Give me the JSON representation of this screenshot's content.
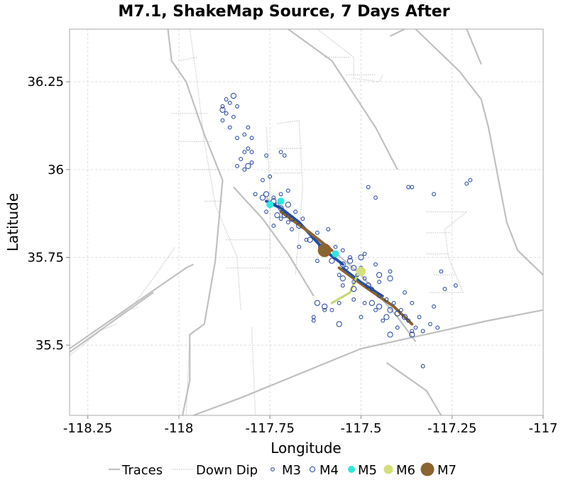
{
  "chart_data": {
    "type": "scatter",
    "title": "M7.1, ShakeMap Source, 7 Days After",
    "xlabel": "Longitude",
    "ylabel": "Latitude",
    "xlim": [
      -118.3,
      -117.0
    ],
    "ylim": [
      35.3,
      36.4
    ],
    "xticks": [
      {
        "value": -118.25,
        "label": "-118.25"
      },
      {
        "value": -118.0,
        "label": "-118"
      },
      {
        "value": -117.75,
        "label": "-117.75"
      },
      {
        "value": -117.5,
        "label": "-117.5"
      },
      {
        "value": -117.25,
        "label": "-117.25"
      },
      {
        "value": -117.0,
        "label": "-117"
      }
    ],
    "yticks": [
      {
        "value": 35.5,
        "label": "35.5"
      },
      {
        "value": 35.75,
        "label": "35.75"
      },
      {
        "value": 36.0,
        "label": "36"
      },
      {
        "value": 36.25,
        "label": "36.25"
      }
    ],
    "grid": true,
    "legend_position": "bottom",
    "legend": [
      {
        "key": "traces",
        "label": "Traces",
        "color": "#c0c0c0",
        "marker": "line"
      },
      {
        "key": "downdip",
        "label": "Down Dip",
        "color": "#c8c8c8",
        "marker": "dotted-line"
      },
      {
        "key": "m3",
        "label": "M3",
        "color": "#1f3f9a",
        "marker": "open-circle-small"
      },
      {
        "key": "m4",
        "label": "M4",
        "color": "#1f3f9a",
        "marker": "open-circle"
      },
      {
        "key": "m5",
        "label": "M5",
        "color": "#2ee8e0",
        "marker": "filled-circle"
      },
      {
        "key": "m6",
        "label": "M6",
        "color": "#d4de7a",
        "marker": "filled-circle"
      },
      {
        "key": "m7",
        "label": "M7",
        "color": "#8b6430",
        "marker": "filled-circle"
      }
    ],
    "colors": {
      "trace": "#c0c0c0",
      "downdip": "#c8c8c8",
      "m3m4": "#1f3f9a",
      "rupture_blue": "#1f4fa8",
      "rupture_brown": "#8b6430",
      "rupture_green": "#c6d86a",
      "grid": "#dddddd"
    },
    "traces": [
      [
        [
          -118.3,
          35.49
        ],
        [
          -118.05,
          35.67
        ],
        [
          -117.98,
          35.72
        ],
        [
          -117.96,
          35.73
        ]
      ],
      [
        [
          -118.3,
          35.48
        ],
        [
          -118.07,
          35.65
        ]
      ],
      [
        [
          -117.99,
          35.3
        ],
        [
          -117.97,
          35.4
        ],
        [
          -117.97,
          35.53
        ],
        [
          -117.93,
          35.56
        ],
        [
          -117.9,
          35.74
        ],
        [
          -117.88,
          35.97
        ],
        [
          -117.93,
          36.1
        ],
        [
          -117.98,
          36.25
        ],
        [
          -118.02,
          36.31
        ],
        [
          -118.03,
          36.4
        ]
      ],
      [
        [
          -117.96,
          35.3
        ],
        [
          -117.83,
          35.35
        ],
        [
          -117.5,
          35.49
        ],
        [
          -117.15,
          35.57
        ],
        [
          -117.0,
          35.6
        ]
      ],
      [
        [
          -117.85,
          35.95
        ],
        [
          -117.77,
          35.86
        ],
        [
          -117.7,
          35.76
        ],
        [
          -117.63,
          35.64
        ]
      ],
      [
        [
          -117.43,
          35.45
        ],
        [
          -117.32,
          35.37
        ],
        [
          -117.28,
          35.3
        ]
      ],
      [
        [
          -117.76,
          35.92
        ],
        [
          -117.6,
          35.79
        ],
        [
          -117.5,
          35.7
        ],
        [
          -117.4,
          35.58
        ],
        [
          -117.35,
          35.51
        ]
      ],
      [
        [
          -117.7,
          36.4
        ],
        [
          -117.58,
          36.31
        ],
        [
          -117.46,
          36.12
        ],
        [
          -117.4,
          36.0
        ]
      ],
      [
        [
          -117.35,
          36.4
        ],
        [
          -117.23,
          36.28
        ],
        [
          -117.17,
          36.2
        ],
        [
          -117.15,
          36.12
        ],
        [
          -117.1,
          35.85
        ],
        [
          -117.07,
          35.77
        ],
        [
          -117.0,
          35.7
        ]
      ],
      [
        [
          -117.21,
          36.4
        ],
        [
          -117.17,
          36.3
        ]
      ],
      [
        [
          -117.42,
          36.38
        ],
        [
          -117.38,
          36.4
        ]
      ]
    ],
    "downdip": [
      [
        [
          -117.73,
          36.13
        ],
        [
          -117.67,
          36.14
        ],
        [
          -117.66,
          35.95
        ],
        [
          -117.68,
          35.7
        ]
      ],
      [
        [
          -117.76,
          36.12
        ],
        [
          -117.75,
          35.95
        ],
        [
          -117.75,
          35.75
        ]
      ],
      [
        [
          -117.97,
          36.4
        ],
        [
          -117.95,
          36.25
        ],
        [
          -117.93,
          36.08
        ],
        [
          -117.9,
          35.9
        ],
        [
          -117.84,
          35.75
        ],
        [
          -117.83,
          35.6
        ]
      ],
      [
        [
          -118.0,
          36.31
        ],
        [
          -117.95,
          36.32
        ]
      ],
      [
        [
          -118.02,
          36.16
        ],
        [
          -117.92,
          36.16
        ]
      ],
      [
        [
          -118.0,
          36.08
        ],
        [
          -117.91,
          36.08
        ]
      ],
      [
        [
          -117.96,
          36.0
        ],
        [
          -117.89,
          36.0
        ]
      ],
      [
        [
          -117.93,
          35.91
        ],
        [
          -117.88,
          35.91
        ]
      ],
      [
        [
          -117.73,
          36.06
        ],
        [
          -117.66,
          36.06
        ]
      ],
      [
        [
          -117.74,
          35.99
        ],
        [
          -117.66,
          35.99
        ]
      ],
      [
        [
          -117.87,
          35.8
        ],
        [
          -117.75,
          35.8
        ]
      ],
      [
        [
          -117.87,
          35.72
        ],
        [
          -117.75,
          35.72
        ]
      ],
      [
        [
          -117.32,
          35.88
        ],
        [
          -117.21,
          35.88
        ],
        [
          -117.27,
          35.83
        ],
        [
          -117.26,
          35.75
        ],
        [
          -117.22,
          35.65
        ],
        [
          -117.31,
          35.65
        ]
      ],
      [
        [
          -117.32,
          35.82
        ],
        [
          -117.25,
          35.82
        ]
      ],
      [
        [
          -117.32,
          35.76
        ],
        [
          -117.26,
          35.76
        ]
      ],
      [
        [
          -117.3,
          35.7
        ],
        [
          -117.24,
          35.7
        ]
      ],
      [
        [
          -118.3,
          35.47
        ],
        [
          -118.12,
          35.62
        ],
        [
          -118.05,
          35.72
        ],
        [
          -118.01,
          35.78
        ]
      ],
      [
        [
          -118.22,
          35.54
        ],
        [
          -118.17,
          35.56
        ]
      ],
      [
        [
          -118.16,
          35.59
        ],
        [
          -118.11,
          35.61
        ]
      ],
      [
        [
          -117.97,
          35.53
        ],
        [
          -117.98,
          35.3
        ]
      ],
      [
        [
          -117.8,
          35.55
        ],
        [
          -117.79,
          35.3
        ]
      ],
      [
        [
          -117.62,
          36.4
        ],
        [
          -117.52,
          36.32
        ],
        [
          -117.52,
          36.26
        ],
        [
          -117.45,
          36.25
        ],
        [
          -117.44,
          36.27
        ]
      ],
      [
        [
          -117.6,
          36.32
        ],
        [
          -117.53,
          36.32
        ]
      ],
      [
        [
          -117.54,
          36.27
        ],
        [
          -117.46,
          36.27
        ]
      ]
    ],
    "rupture_segments": [
      {
        "color": "#1f4fa8",
        "width": 4,
        "points": [
          [
            -117.76,
            35.91
          ],
          [
            -117.72,
            35.89
          ],
          [
            -117.67,
            35.85
          ],
          [
            -117.6,
            35.77
          ],
          [
            -117.55,
            35.73
          ]
        ]
      },
      {
        "color": "#8b6430",
        "width": 4,
        "points": [
          [
            -117.72,
            35.88
          ],
          [
            -117.64,
            35.82
          ],
          [
            -117.58,
            35.77
          ]
        ]
      },
      {
        "color": "#8b6430",
        "width": 4,
        "points": [
          [
            -117.56,
            35.72
          ],
          [
            -117.48,
            35.66
          ],
          [
            -117.41,
            35.61
          ],
          [
            -117.36,
            35.56
          ]
        ]
      },
      {
        "color": "#1f4fa8",
        "width": 3,
        "points": [
          [
            -117.55,
            35.72
          ],
          [
            -117.5,
            35.68
          ],
          [
            -117.44,
            35.64
          ]
        ]
      },
      {
        "color": "#c6d86a",
        "width": 3,
        "points": [
          [
            -117.51,
            35.7
          ],
          [
            -117.53,
            35.65
          ],
          [
            -117.58,
            35.62
          ]
        ]
      }
    ],
    "events_m3": [
      [
        -117.88,
        36.18
      ],
      [
        -117.86,
        36.19
      ],
      [
        -117.87,
        36.16
      ],
      [
        -117.88,
        36.14
      ],
      [
        -117.86,
        36.12
      ],
      [
        -117.84,
        36.18
      ],
      [
        -117.87,
        36.2
      ],
      [
        -117.85,
        36.15
      ],
      [
        -117.81,
        36.12
      ],
      [
        -117.82,
        36.1
      ],
      [
        -117.84,
        36.09
      ],
      [
        -117.8,
        36.09
      ],
      [
        -117.81,
        36.06
      ],
      [
        -117.82,
        36.05
      ],
      [
        -117.8,
        36.05
      ],
      [
        -117.83,
        36.03
      ],
      [
        -117.8,
        36.02
      ],
      [
        -117.82,
        36.0
      ],
      [
        -117.84,
        36.01
      ],
      [
        -117.76,
        36.04
      ],
      [
        -117.72,
        36.05
      ],
      [
        -117.71,
        36.04
      ],
      [
        -117.75,
        35.98
      ],
      [
        -117.77,
        35.97
      ],
      [
        -117.79,
        35.93
      ],
      [
        -117.7,
        35.94
      ],
      [
        -117.72,
        35.93
      ],
      [
        -117.74,
        35.92
      ],
      [
        -117.73,
        35.9
      ],
      [
        -117.76,
        35.88
      ],
      [
        -117.72,
        35.86
      ],
      [
        -117.68,
        35.88
      ],
      [
        -117.7,
        35.85
      ],
      [
        -117.74,
        35.84
      ],
      [
        -117.66,
        35.86
      ],
      [
        -117.69,
        35.83
      ],
      [
        -117.62,
        35.82
      ],
      [
        -117.6,
        35.78
      ],
      [
        -117.57,
        35.76
      ],
      [
        -117.62,
        35.74
      ],
      [
        -117.55,
        35.77
      ],
      [
        -117.53,
        35.75
      ],
      [
        -117.54,
        35.72
      ],
      [
        -117.51,
        35.7
      ],
      [
        -117.49,
        35.69
      ],
      [
        -117.52,
        35.68
      ],
      [
        -117.47,
        35.66
      ],
      [
        -117.45,
        35.64
      ],
      [
        -117.43,
        35.63
      ],
      [
        -117.41,
        35.62
      ],
      [
        -117.39,
        35.6
      ],
      [
        -117.37,
        35.57
      ],
      [
        -117.35,
        35.55
      ],
      [
        -117.36,
        35.54
      ],
      [
        -117.34,
        35.58
      ],
      [
        -117.33,
        35.54
      ],
      [
        -117.31,
        35.56
      ],
      [
        -117.4,
        35.55
      ],
      [
        -117.44,
        35.57
      ],
      [
        -117.46,
        35.6
      ],
      [
        -117.49,
        35.62
      ],
      [
        -117.52,
        35.63
      ],
      [
        -117.56,
        35.62
      ],
      [
        -117.58,
        35.6
      ],
      [
        -117.6,
        35.6
      ],
      [
        -117.63,
        35.58
      ],
      [
        -117.56,
        35.7
      ],
      [
        -117.5,
        35.72
      ],
      [
        -117.45,
        35.68
      ],
      [
        -117.38,
        35.65
      ],
      [
        -117.36,
        35.62
      ],
      [
        -117.3,
        35.61
      ],
      [
        -117.27,
        35.66
      ],
      [
        -117.24,
        35.67
      ],
      [
        -117.28,
        35.71
      ],
      [
        -117.42,
        35.71
      ],
      [
        -117.46,
        35.73
      ],
      [
        -117.49,
        35.76
      ],
      [
        -117.48,
        35.95
      ],
      [
        -117.46,
        35.92
      ],
      [
        -117.37,
        35.95
      ],
      [
        -117.36,
        35.95
      ],
      [
        -117.3,
        35.93
      ],
      [
        -117.21,
        35.96
      ],
      [
        -117.2,
        35.97
      ],
      [
        -117.57,
        35.78
      ],
      [
        -117.59,
        35.83
      ],
      [
        -117.65,
        35.8
      ],
      [
        -117.67,
        35.78
      ],
      [
        -117.33,
        35.44
      ],
      [
        -117.29,
        35.55
      ],
      [
        -117.63,
        35.57
      ],
      [
        -117.55,
        35.67
      ],
      [
        -117.5,
        35.58
      ]
    ],
    "events_m4": [
      [
        -117.88,
        36.17
      ],
      [
        -117.85,
        36.21
      ],
      [
        -117.81,
        36.01
      ],
      [
        -117.77,
        35.92
      ],
      [
        -117.76,
        35.93
      ],
      [
        -117.74,
        35.91
      ],
      [
        -117.72,
        35.89
      ],
      [
        -117.71,
        35.87
      ],
      [
        -117.69,
        35.86
      ],
      [
        -117.73,
        35.87
      ],
      [
        -117.7,
        35.9
      ],
      [
        -117.67,
        35.84
      ],
      [
        -117.64,
        35.8
      ],
      [
        -117.61,
        35.78
      ],
      [
        -117.58,
        35.74
      ],
      [
        -117.55,
        35.73
      ],
      [
        -117.52,
        35.72
      ],
      [
        -117.52,
        35.66
      ],
      [
        -117.48,
        35.67
      ],
      [
        -117.47,
        35.62
      ],
      [
        -117.45,
        35.61
      ],
      [
        -117.42,
        35.6
      ],
      [
        -117.4,
        35.59
      ],
      [
        -117.38,
        35.58
      ],
      [
        -117.36,
        35.53
      ],
      [
        -117.42,
        35.53
      ],
      [
        -117.56,
        35.56
      ],
      [
        -117.6,
        35.61
      ],
      [
        -117.62,
        35.62
      ],
      [
        -117.53,
        35.74
      ],
      [
        -117.5,
        35.75
      ],
      [
        -117.45,
        35.7
      ],
      [
        -117.42,
        35.69
      ],
      [
        -117.55,
        35.69
      ],
      [
        -117.43,
        35.58
      ]
    ],
    "events_m5": [
      {
        "lon": -117.75,
        "lat": 35.9
      },
      {
        "lon": -117.72,
        "lat": 35.91
      },
      {
        "lon": -117.57,
        "lat": 35.76
      }
    ],
    "events_m6": [
      {
        "lon": -117.5,
        "lat": 35.71
      }
    ],
    "events_m7": [
      {
        "lon": -117.6,
        "lat": 35.77
      }
    ]
  }
}
